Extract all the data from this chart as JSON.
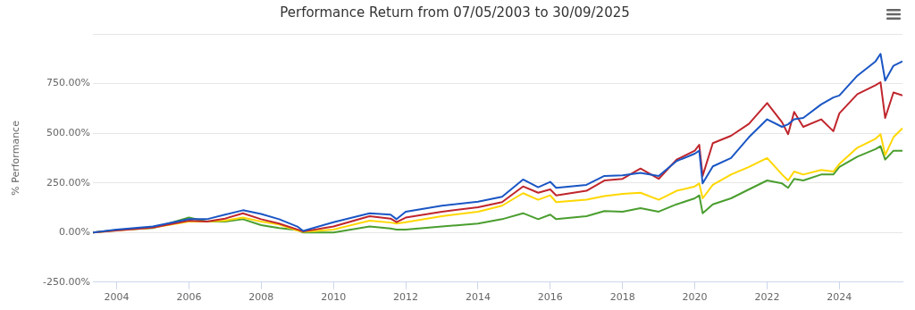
{
  "chart_data": {
    "type": "line",
    "title": "Performance Return from 07/05/2003 to 30/09/2025",
    "ylabel": "% Performance",
    "x": [
      "2003-05-07",
      "2004-01",
      "2005-01",
      "2006-01",
      "2006-07",
      "2007-01",
      "2007-07",
      "2008-01",
      "2008-07",
      "2009-01",
      "2009-03",
      "2010-01",
      "2011-01",
      "2011-08",
      "2011-10",
      "2012-01",
      "2013-01",
      "2014-01",
      "2014-09",
      "2015-04",
      "2015-09",
      "2016-01",
      "2016-03",
      "2017-01",
      "2017-07",
      "2018-01",
      "2018-07",
      "2019-01",
      "2019-07",
      "2020-01",
      "2020-02-15",
      "2020-03-20",
      "2020-07",
      "2021-01",
      "2021-07",
      "2022-01",
      "2022-06",
      "2022-08",
      "2022-10",
      "2023-01",
      "2023-07",
      "2023-11",
      "2024-01",
      "2024-07",
      "2025-01",
      "2025-02-20",
      "2025-04-08",
      "2025-07",
      "2025-09-30"
    ],
    "series": [
      {
        "color": "#1a56c4",
        "values": [
          0,
          15,
          30,
          67,
          67,
          90,
          112,
          93,
          67,
          30,
          8,
          52,
          97,
          90,
          67,
          105,
          135,
          155,
          180,
          267,
          228,
          255,
          225,
          240,
          285,
          288,
          300,
          285,
          360,
          397,
          412,
          247,
          333,
          375,
          480,
          570,
          532,
          545,
          570,
          577,
          645,
          680,
          690,
          790,
          862,
          900,
          765,
          840,
          862
        ]
      },
      {
        "color": "#c0262d",
        "values": [
          0,
          10,
          25,
          60,
          55,
          70,
          97,
          67,
          45,
          15,
          5,
          30,
          82,
          70,
          52,
          75,
          105,
          127,
          153,
          232,
          200,
          217,
          187,
          210,
          262,
          270,
          322,
          270,
          367,
          412,
          442,
          285,
          450,
          487,
          547,
          652,
          555,
          495,
          607,
          532,
          570,
          510,
          600,
          697,
          742,
          757,
          577,
          705,
          690
        ]
      },
      {
        "color": "#ffd700",
        "values": [
          0,
          10,
          25,
          55,
          55,
          60,
          75,
          55,
          40,
          10,
          3,
          15,
          60,
          50,
          45,
          52,
          82,
          105,
          135,
          198,
          165,
          187,
          153,
          165,
          183,
          195,
          200,
          165,
          210,
          232,
          247,
          172,
          240,
          292,
          330,
          375,
          292,
          262,
          307,
          292,
          315,
          307,
          345,
          427,
          472,
          495,
          390,
          480,
          525
        ]
      },
      {
        "color": "#4a9e2f",
        "values": [
          0,
          12,
          22,
          75,
          55,
          55,
          67,
          37,
          22,
          12,
          0,
          0,
          30,
          20,
          15,
          15,
          30,
          45,
          67,
          97,
          67,
          90,
          67,
          82,
          108,
          105,
          123,
          105,
          142,
          172,
          187,
          97,
          142,
          172,
          217,
          262,
          247,
          225,
          270,
          262,
          292,
          292,
          330,
          382,
          420,
          435,
          367,
          412,
          412
        ]
      }
    ],
    "xlim": [
      "2003-05-07",
      "2025-09-30"
    ],
    "xticks": [
      "2004",
      "2006",
      "2008",
      "2010",
      "2012",
      "2014",
      "2016",
      "2018",
      "2020",
      "2022",
      "2024"
    ],
    "ylim": [
      -250,
      1000
    ],
    "yticks": [
      {
        "value": -250,
        "label": "-250.00%"
      },
      {
        "value": 0,
        "label": "0.00%"
      },
      {
        "value": 250,
        "label": "250.00%"
      },
      {
        "value": 500,
        "label": "500.00%"
      },
      {
        "value": 750,
        "label": "750.00%"
      },
      {
        "value": 1000,
        "label": null
      }
    ],
    "grid": "y",
    "legend": false,
    "marker": "none",
    "line_style": "solid"
  }
}
